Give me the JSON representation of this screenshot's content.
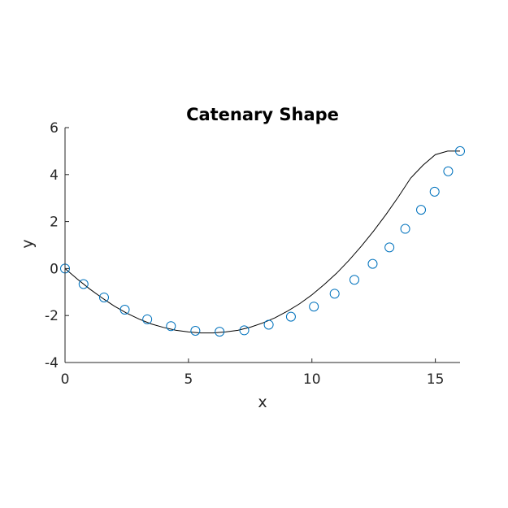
{
  "chart_data": {
    "type": "line",
    "title": "Catenary Shape",
    "xlabel": "x",
    "ylabel": "y",
    "xlim": [
      0,
      16
    ],
    "ylim": [
      -4,
      6
    ],
    "xticks": [
      0,
      5,
      10,
      15
    ],
    "yticks": [
      -4,
      -2,
      0,
      2,
      4,
      6
    ],
    "grid": false,
    "series": [
      {
        "kind": "curve",
        "color": "#000000",
        "x": [
          0,
          0.5,
          1,
          1.5,
          2,
          2.5,
          3,
          3.5,
          4,
          4.5,
          5,
          5.5,
          6,
          6.5,
          7,
          7.5,
          8,
          8.5,
          9,
          9.5,
          10,
          10.5,
          11,
          11.5,
          12,
          12.5,
          13,
          13.5,
          14,
          14.5,
          15,
          15.5,
          16
        ],
        "y": [
          0,
          -0.45,
          -0.87,
          -1.25,
          -1.6,
          -1.9,
          -2.15,
          -2.36,
          -2.51,
          -2.63,
          -2.7,
          -2.74,
          -2.74,
          -2.7,
          -2.63,
          -2.5,
          -2.32,
          -2.1,
          -1.82,
          -1.5,
          -1.12,
          -0.68,
          -0.2,
          0.35,
          0.95,
          1.6,
          2.3,
          3.05,
          3.85,
          4.4,
          4.85,
          5.0,
          5.0
        ]
      },
      {
        "kind": "markers",
        "color": "#0072BD",
        "marker": "circle",
        "x": [
          0,
          0.75,
          1.58,
          2.42,
          3.33,
          4.29,
          5.28,
          6.26,
          7.26,
          8.25,
          9.15,
          10.08,
          10.92,
          11.72,
          12.46,
          13.14,
          13.78,
          14.42,
          14.97,
          15.52,
          16
        ],
        "y": [
          0,
          -0.66,
          -1.23,
          -1.75,
          -2.16,
          -2.45,
          -2.65,
          -2.69,
          -2.63,
          -2.39,
          -2.05,
          -1.62,
          -1.07,
          -0.48,
          0.2,
          0.9,
          1.69,
          2.5,
          3.27,
          4.14,
          5.0
        ]
      }
    ]
  }
}
